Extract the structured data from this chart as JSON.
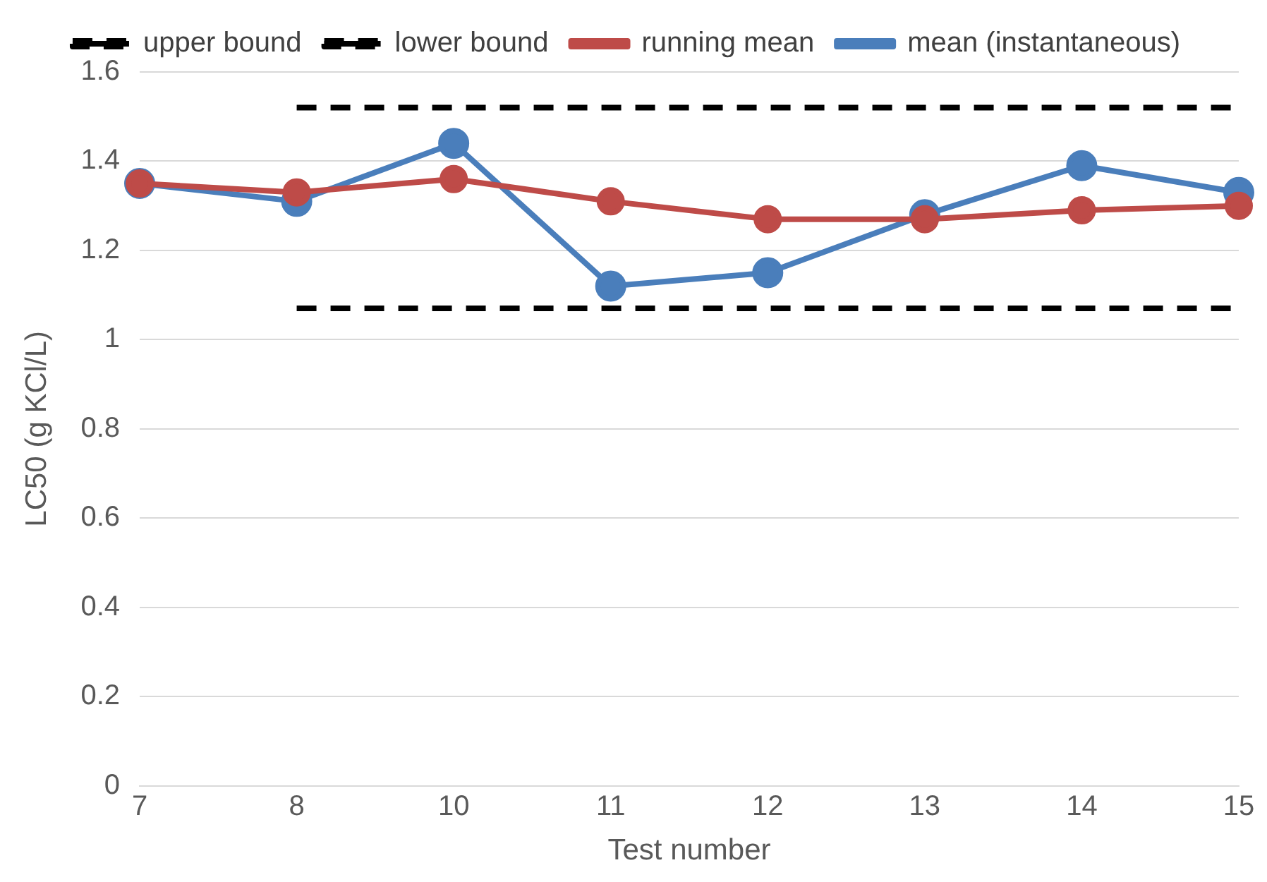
{
  "chart_data": {
    "type": "line",
    "xlabel": "Test number",
    "ylabel": "LC50 (g KCl/L)",
    "categories": [
      "7",
      "8",
      "10",
      "11",
      "12",
      "13",
      "14",
      "15"
    ],
    "series": [
      {
        "name": "mean (instantaneous)",
        "color": "#4a7ebb",
        "marker": "circle",
        "line_style": "solid",
        "values": [
          1.35,
          1.31,
          1.44,
          1.12,
          1.15,
          1.28,
          1.39,
          1.33
        ]
      },
      {
        "name": "running mean",
        "color": "#be4b48",
        "marker": "circle",
        "line_style": "solid",
        "values": [
          1.35,
          1.33,
          1.36,
          1.31,
          1.27,
          1.27,
          1.29,
          1.3
        ]
      },
      {
        "name": "lower bound",
        "color": "#000000",
        "marker": "none",
        "line_style": "dashed",
        "values": [
          null,
          1.07,
          1.07,
          1.07,
          1.07,
          1.07,
          1.07,
          1.07
        ]
      },
      {
        "name": "upper bound",
        "color": "#000000",
        "marker": "none",
        "line_style": "dashed",
        "values": [
          null,
          1.52,
          1.52,
          1.52,
          1.52,
          1.52,
          1.52,
          1.52
        ]
      }
    ],
    "ylim": [
      0,
      1.6
    ],
    "yticks": [
      0,
      0.2,
      0.4,
      0.6,
      0.8,
      1,
      1.2,
      1.4,
      1.6
    ],
    "grid": "y",
    "legend": "top"
  }
}
